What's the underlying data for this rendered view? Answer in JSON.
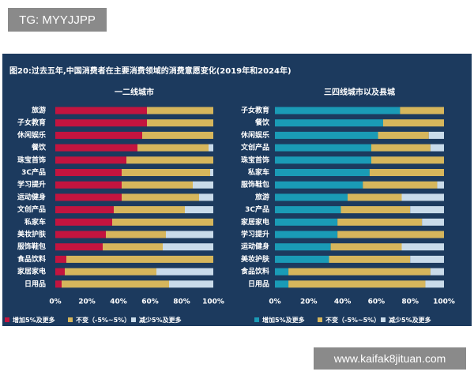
{
  "watermark_top": "TG: MYYJJPP",
  "figure_title": "图20:过去五年,中国消费者在主要消费领域的消费意愿变化(2019年和2024年)",
  "watermark_bottom": "www.kaifak8jituan.com",
  "chart_data": [
    {
      "type": "bar",
      "horizontal": true,
      "stacked": true,
      "title": "一二线城市",
      "categories": [
        "旅游",
        "子女教育",
        "休闲娱乐",
        "餐饮",
        "珠宝首饰",
        "3C产品",
        "学习提升",
        "运动健身",
        "文创产品",
        "私家车",
        "美妆护肤",
        "服饰鞋包",
        "食品饮料",
        "家居家电",
        "日用品"
      ],
      "series": [
        {
          "name": "增加5%及更多",
          "color": "#c3143f",
          "values": [
            58,
            58,
            55,
            52,
            45,
            42,
            42,
            42,
            37,
            36,
            32,
            30,
            7,
            6,
            4
          ]
        },
        {
          "name": "不变（-5%~5%）",
          "color": "#d6b65c",
          "values": [
            42,
            42,
            45,
            45,
            55,
            56,
            45,
            49,
            45,
            64,
            38,
            38,
            93,
            58,
            68
          ]
        },
        {
          "name": "减少5%及更多",
          "color": "#c9dbea",
          "values": [
            0,
            0,
            0,
            3,
            0,
            2,
            13,
            9,
            18,
            0,
            30,
            32,
            0,
            36,
            28
          ]
        }
      ],
      "xlim": [
        0,
        100
      ],
      "xticks": [
        {
          "value": 0,
          "label": "0%"
        },
        {
          "value": 20,
          "label": "20%"
        },
        {
          "value": 40,
          "label": "40%"
        },
        {
          "value": 60,
          "label": "60%"
        },
        {
          "value": 80,
          "label": "80%"
        },
        {
          "value": 100,
          "label": "100%"
        }
      ]
    },
    {
      "type": "bar",
      "horizontal": true,
      "stacked": true,
      "title": "三四线城市以及县城",
      "categories": [
        "子女教育",
        "餐饮",
        "休闲娱乐",
        "文创产品",
        "珠宝首饰",
        "私家车",
        "服饰鞋包",
        "旅游",
        "3C产品",
        "家居家电",
        "学习提升",
        "运动健身",
        "美妆护肤",
        "食品饮料",
        "日用品"
      ],
      "series": [
        {
          "name": "增加5%及更多",
          "color": "#1a9bb6",
          "values": [
            74,
            64,
            61,
            57,
            57,
            56,
            52,
            43,
            39,
            37,
            37,
            33,
            32,
            8,
            8
          ]
        },
        {
          "name": "不变（-5%~5%）",
          "color": "#d6b65c",
          "values": [
            26,
            36,
            30,
            35,
            43,
            44,
            44,
            32,
            41,
            50,
            63,
            42,
            48,
            84,
            81
          ]
        },
        {
          "name": "减少5%及更多",
          "color": "#c9dbea",
          "values": [
            0,
            0,
            9,
            8,
            0,
            0,
            4,
            25,
            20,
            13,
            0,
            25,
            20,
            8,
            11
          ]
        }
      ],
      "xlim": [
        0,
        100
      ],
      "xticks": [
        {
          "value": 0,
          "label": "0%"
        },
        {
          "value": 20,
          "label": "20%"
        },
        {
          "value": 40,
          "label": "40%"
        },
        {
          "value": 60,
          "label": "60%"
        },
        {
          "value": 80,
          "label": "80%"
        },
        {
          "value": 100,
          "label": "100%"
        }
      ]
    }
  ]
}
